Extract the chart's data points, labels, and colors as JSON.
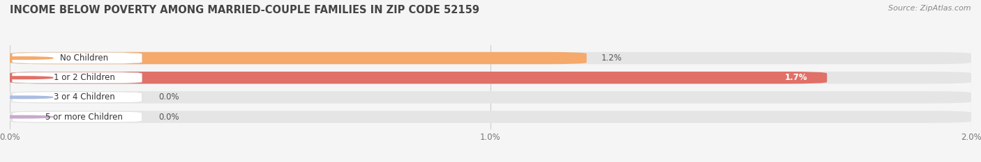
{
  "title": "INCOME BELOW POVERTY AMONG MARRIED-COUPLE FAMILIES IN ZIP CODE 52159",
  "source": "Source: ZipAtlas.com",
  "categories": [
    "No Children",
    "1 or 2 Children",
    "3 or 4 Children",
    "5 or more Children"
  ],
  "values": [
    1.2,
    1.7,
    0.0,
    0.0
  ],
  "value_labels": [
    "1.2%",
    "1.7%",
    "0.0%",
    "0.0%"
  ],
  "bar_colors": [
    "#F5A96A",
    "#E07068",
    "#AABCE0",
    "#C8AACC"
  ],
  "xlim": [
    0,
    2.0
  ],
  "xticks": [
    0.0,
    1.0,
    2.0
  ],
  "xtick_labels": [
    "0.0%",
    "1.0%",
    "2.0%"
  ],
  "background_color": "#f5f5f5",
  "bar_background": "#e5e5e5",
  "title_fontsize": 10.5,
  "source_fontsize": 8,
  "bar_height": 0.62,
  "label_fontsize": 8.5,
  "value_fontsize": 8.5
}
